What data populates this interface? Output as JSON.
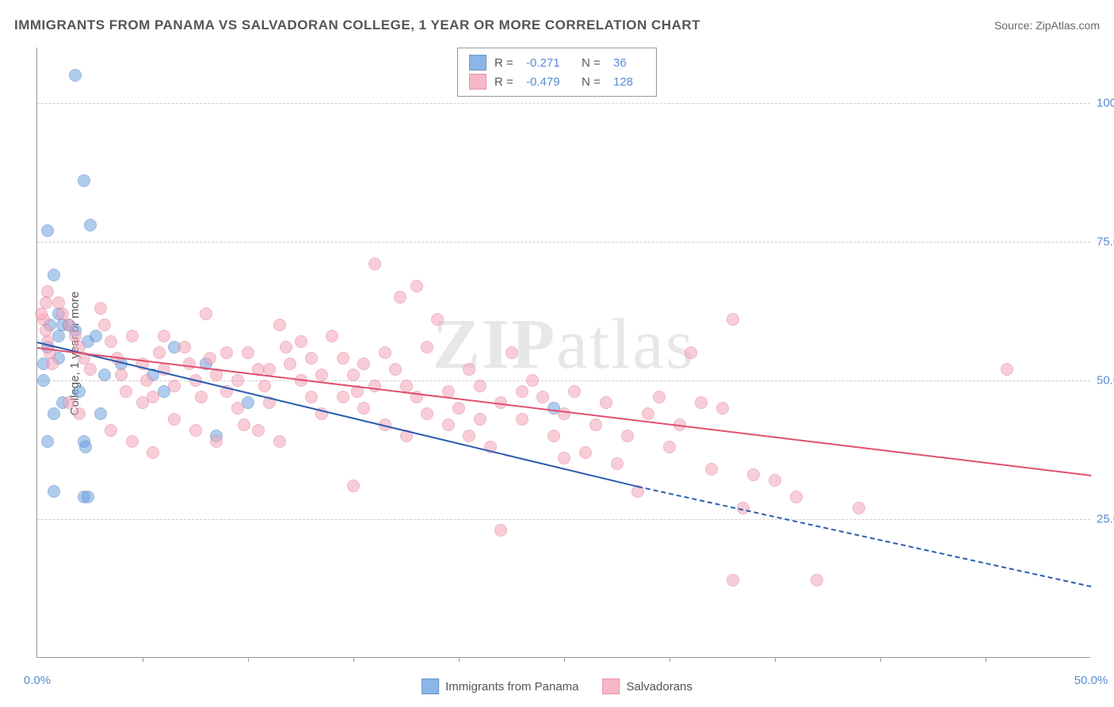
{
  "title": "IMMIGRANTS FROM PANAMA VS SALVADORAN COLLEGE, 1 YEAR OR MORE CORRELATION CHART",
  "source": "Source: ZipAtlas.com",
  "watermark_bold": "ZIP",
  "watermark_rest": "atlas",
  "chart": {
    "type": "scatter",
    "ylabel": "College, 1 year or more",
    "xlim": [
      0,
      50
    ],
    "ylim": [
      0,
      110
    ],
    "xticks": [
      0,
      50
    ],
    "xtick_minor": [
      5,
      10,
      15,
      20,
      25,
      30,
      35,
      40,
      45
    ],
    "yticks": [
      25,
      50,
      75,
      100
    ],
    "ytick_format": "%",
    "grid_color": "#d0d0d0",
    "axis_color": "#999999",
    "background_color": "#ffffff",
    "point_radius": 8,
    "point_opacity": 0.55,
    "series": [
      {
        "name": "Immigrants from Panama",
        "color": "#6fa3e0",
        "border_color": "#4a7bc0",
        "r": "-0.271",
        "n": "36",
        "trend": {
          "x1": 0,
          "y1": 57,
          "x2": 28.5,
          "y2": 31,
          "x2_ext": 50,
          "y2_ext": 13,
          "color": "#2a5db0"
        },
        "points": [
          [
            1.8,
            105
          ],
          [
            2.2,
            86
          ],
          [
            0.5,
            77
          ],
          [
            2.5,
            78
          ],
          [
            0.8,
            69
          ],
          [
            1.0,
            62
          ],
          [
            1.2,
            60
          ],
          [
            1.5,
            60
          ],
          [
            1.0,
            58
          ],
          [
            0.6,
            60
          ],
          [
            1.8,
            59
          ],
          [
            2.4,
            57
          ],
          [
            2.8,
            58
          ],
          [
            0.3,
            53
          ],
          [
            0.3,
            50
          ],
          [
            1.0,
            54
          ],
          [
            0.5,
            56
          ],
          [
            0.8,
            44
          ],
          [
            1.2,
            46
          ],
          [
            2.0,
            48
          ],
          [
            0.5,
            39
          ],
          [
            2.2,
            39
          ],
          [
            2.3,
            38
          ],
          [
            0.8,
            30
          ],
          [
            2.2,
            29
          ],
          [
            2.4,
            29
          ],
          [
            3.2,
            51
          ],
          [
            4.0,
            53
          ],
          [
            5.5,
            51
          ],
          [
            6.0,
            48
          ],
          [
            8.5,
            40
          ],
          [
            8.0,
            53
          ],
          [
            10.0,
            46
          ],
          [
            24.5,
            45
          ],
          [
            6.5,
            56
          ],
          [
            3.0,
            44
          ]
        ]
      },
      {
        "name": "Salvadorans",
        "color": "#f4a6ba",
        "border_color": "#e07a95",
        "r": "-0.479",
        "n": "128",
        "trend": {
          "x1": 0,
          "y1": 56,
          "x2": 50,
          "y2": 33,
          "color": "#e0506f"
        },
        "points": [
          [
            0.5,
            66
          ],
          [
            0.4,
            64
          ],
          [
            0.3,
            61
          ],
          [
            0.4,
            59
          ],
          [
            0.5,
            57
          ],
          [
            0.6,
            55
          ],
          [
            0.7,
            53
          ],
          [
            1.0,
            64
          ],
          [
            1.2,
            62
          ],
          [
            1.5,
            60
          ],
          [
            1.8,
            58
          ],
          [
            2.0,
            56
          ],
          [
            2.2,
            54
          ],
          [
            2.5,
            52
          ],
          [
            3.0,
            63
          ],
          [
            3.2,
            60
          ],
          [
            3.5,
            57
          ],
          [
            3.8,
            54
          ],
          [
            4.0,
            51
          ],
          [
            4.2,
            48
          ],
          [
            4.5,
            58
          ],
          [
            5.0,
            53
          ],
          [
            5.2,
            50
          ],
          [
            5.5,
            47
          ],
          [
            5.8,
            55
          ],
          [
            6.0,
            52
          ],
          [
            6.5,
            49
          ],
          [
            7.0,
            56
          ],
          [
            7.2,
            53
          ],
          [
            7.5,
            50
          ],
          [
            7.8,
            47
          ],
          [
            8.0,
            62
          ],
          [
            8.2,
            54
          ],
          [
            8.5,
            51
          ],
          [
            9.0,
            48
          ],
          [
            9.5,
            45
          ],
          [
            9.8,
            42
          ],
          [
            10.0,
            55
          ],
          [
            10.5,
            52
          ],
          [
            10.8,
            49
          ],
          [
            11.0,
            46
          ],
          [
            11.5,
            60
          ],
          [
            11.8,
            56
          ],
          [
            12.0,
            53
          ],
          [
            12.5,
            50
          ],
          [
            13.0,
            47
          ],
          [
            13.5,
            44
          ],
          [
            14.0,
            58
          ],
          [
            14.5,
            54
          ],
          [
            15.0,
            51
          ],
          [
            15.2,
            48
          ],
          [
            15.5,
            45
          ],
          [
            16.0,
            71
          ],
          [
            16.5,
            55
          ],
          [
            17.0,
            52
          ],
          [
            17.2,
            65
          ],
          [
            17.5,
            49
          ],
          [
            18.0,
            67
          ],
          [
            18.5,
            56
          ],
          [
            15.0,
            31
          ],
          [
            19.0,
            61
          ],
          [
            19.5,
            48
          ],
          [
            20.0,
            45
          ],
          [
            20.5,
            52
          ],
          [
            21.0,
            49
          ],
          [
            21.5,
            38
          ],
          [
            22.0,
            46
          ],
          [
            22.5,
            55
          ],
          [
            23.0,
            43
          ],
          [
            23.5,
            50
          ],
          [
            24.0,
            47
          ],
          [
            22.0,
            23
          ],
          [
            24.5,
            40
          ],
          [
            25.0,
            44
          ],
          [
            25.5,
            48
          ],
          [
            26.0,
            37
          ],
          [
            26.5,
            42
          ],
          [
            27.0,
            46
          ],
          [
            27.5,
            35
          ],
          [
            28.0,
            40
          ],
          [
            28.5,
            30
          ],
          [
            29.0,
            44
          ],
          [
            29.5,
            47
          ],
          [
            30.0,
            38
          ],
          [
            30.5,
            42
          ],
          [
            31.0,
            55
          ],
          [
            31.5,
            46
          ],
          [
            32.0,
            34
          ],
          [
            33.0,
            61
          ],
          [
            32.5,
            45
          ],
          [
            34.0,
            33
          ],
          [
            33.5,
            27
          ],
          [
            35.0,
            32
          ],
          [
            36.0,
            29
          ],
          [
            37.0,
            14
          ],
          [
            33.0,
            14
          ],
          [
            39.0,
            27
          ],
          [
            46.0,
            52
          ],
          [
            0.2,
            62
          ],
          [
            1.5,
            46
          ],
          [
            2.0,
            44
          ],
          [
            3.5,
            41
          ],
          [
            4.5,
            39
          ],
          [
            5.5,
            37
          ],
          [
            6.5,
            43
          ],
          [
            7.5,
            41
          ],
          [
            8.5,
            39
          ],
          [
            9.5,
            50
          ],
          [
            10.5,
            41
          ],
          [
            11.5,
            39
          ],
          [
            12.5,
            57
          ],
          [
            13.5,
            51
          ],
          [
            14.5,
            47
          ],
          [
            15.5,
            53
          ],
          [
            16.5,
            42
          ],
          [
            17.5,
            40
          ],
          [
            18.5,
            44
          ],
          [
            19.5,
            42
          ],
          [
            20.5,
            40
          ],
          [
            5.0,
            46
          ],
          [
            6.0,
            58
          ],
          [
            9.0,
            55
          ],
          [
            11.0,
            52
          ],
          [
            13.0,
            54
          ],
          [
            16.0,
            49
          ],
          [
            18.0,
            47
          ],
          [
            21.0,
            43
          ],
          [
            23.0,
            48
          ],
          [
            25.0,
            36
          ]
        ]
      }
    ]
  }
}
